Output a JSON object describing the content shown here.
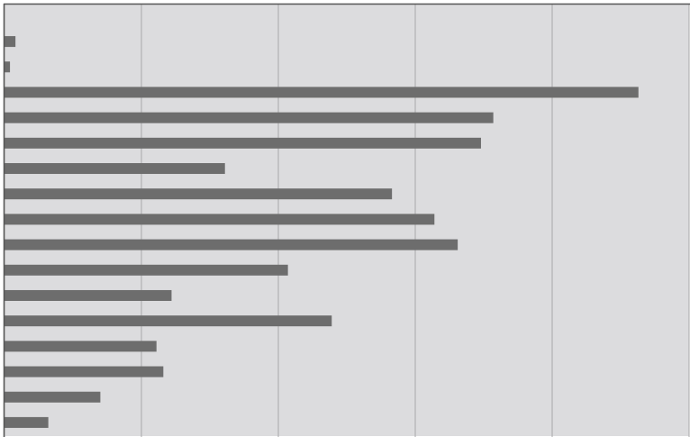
{
  "chart_data": {
    "type": "barh",
    "categories": [
      null,
      null,
      null,
      null,
      null,
      null,
      null,
      null,
      null,
      null,
      null,
      null,
      null,
      null,
      null,
      null
    ],
    "values": [
      0.08,
      0.04,
      4.63,
      3.57,
      3.48,
      1.61,
      2.83,
      3.14,
      3.31,
      2.07,
      1.22,
      2.39,
      1.11,
      1.16,
      0.7,
      0.32
    ],
    "color": "#6d6d6d",
    "xlim": [
      0,
      5
    ],
    "xticks": [
      0,
      1,
      2,
      3,
      4,
      5
    ],
    "grid": true
  }
}
